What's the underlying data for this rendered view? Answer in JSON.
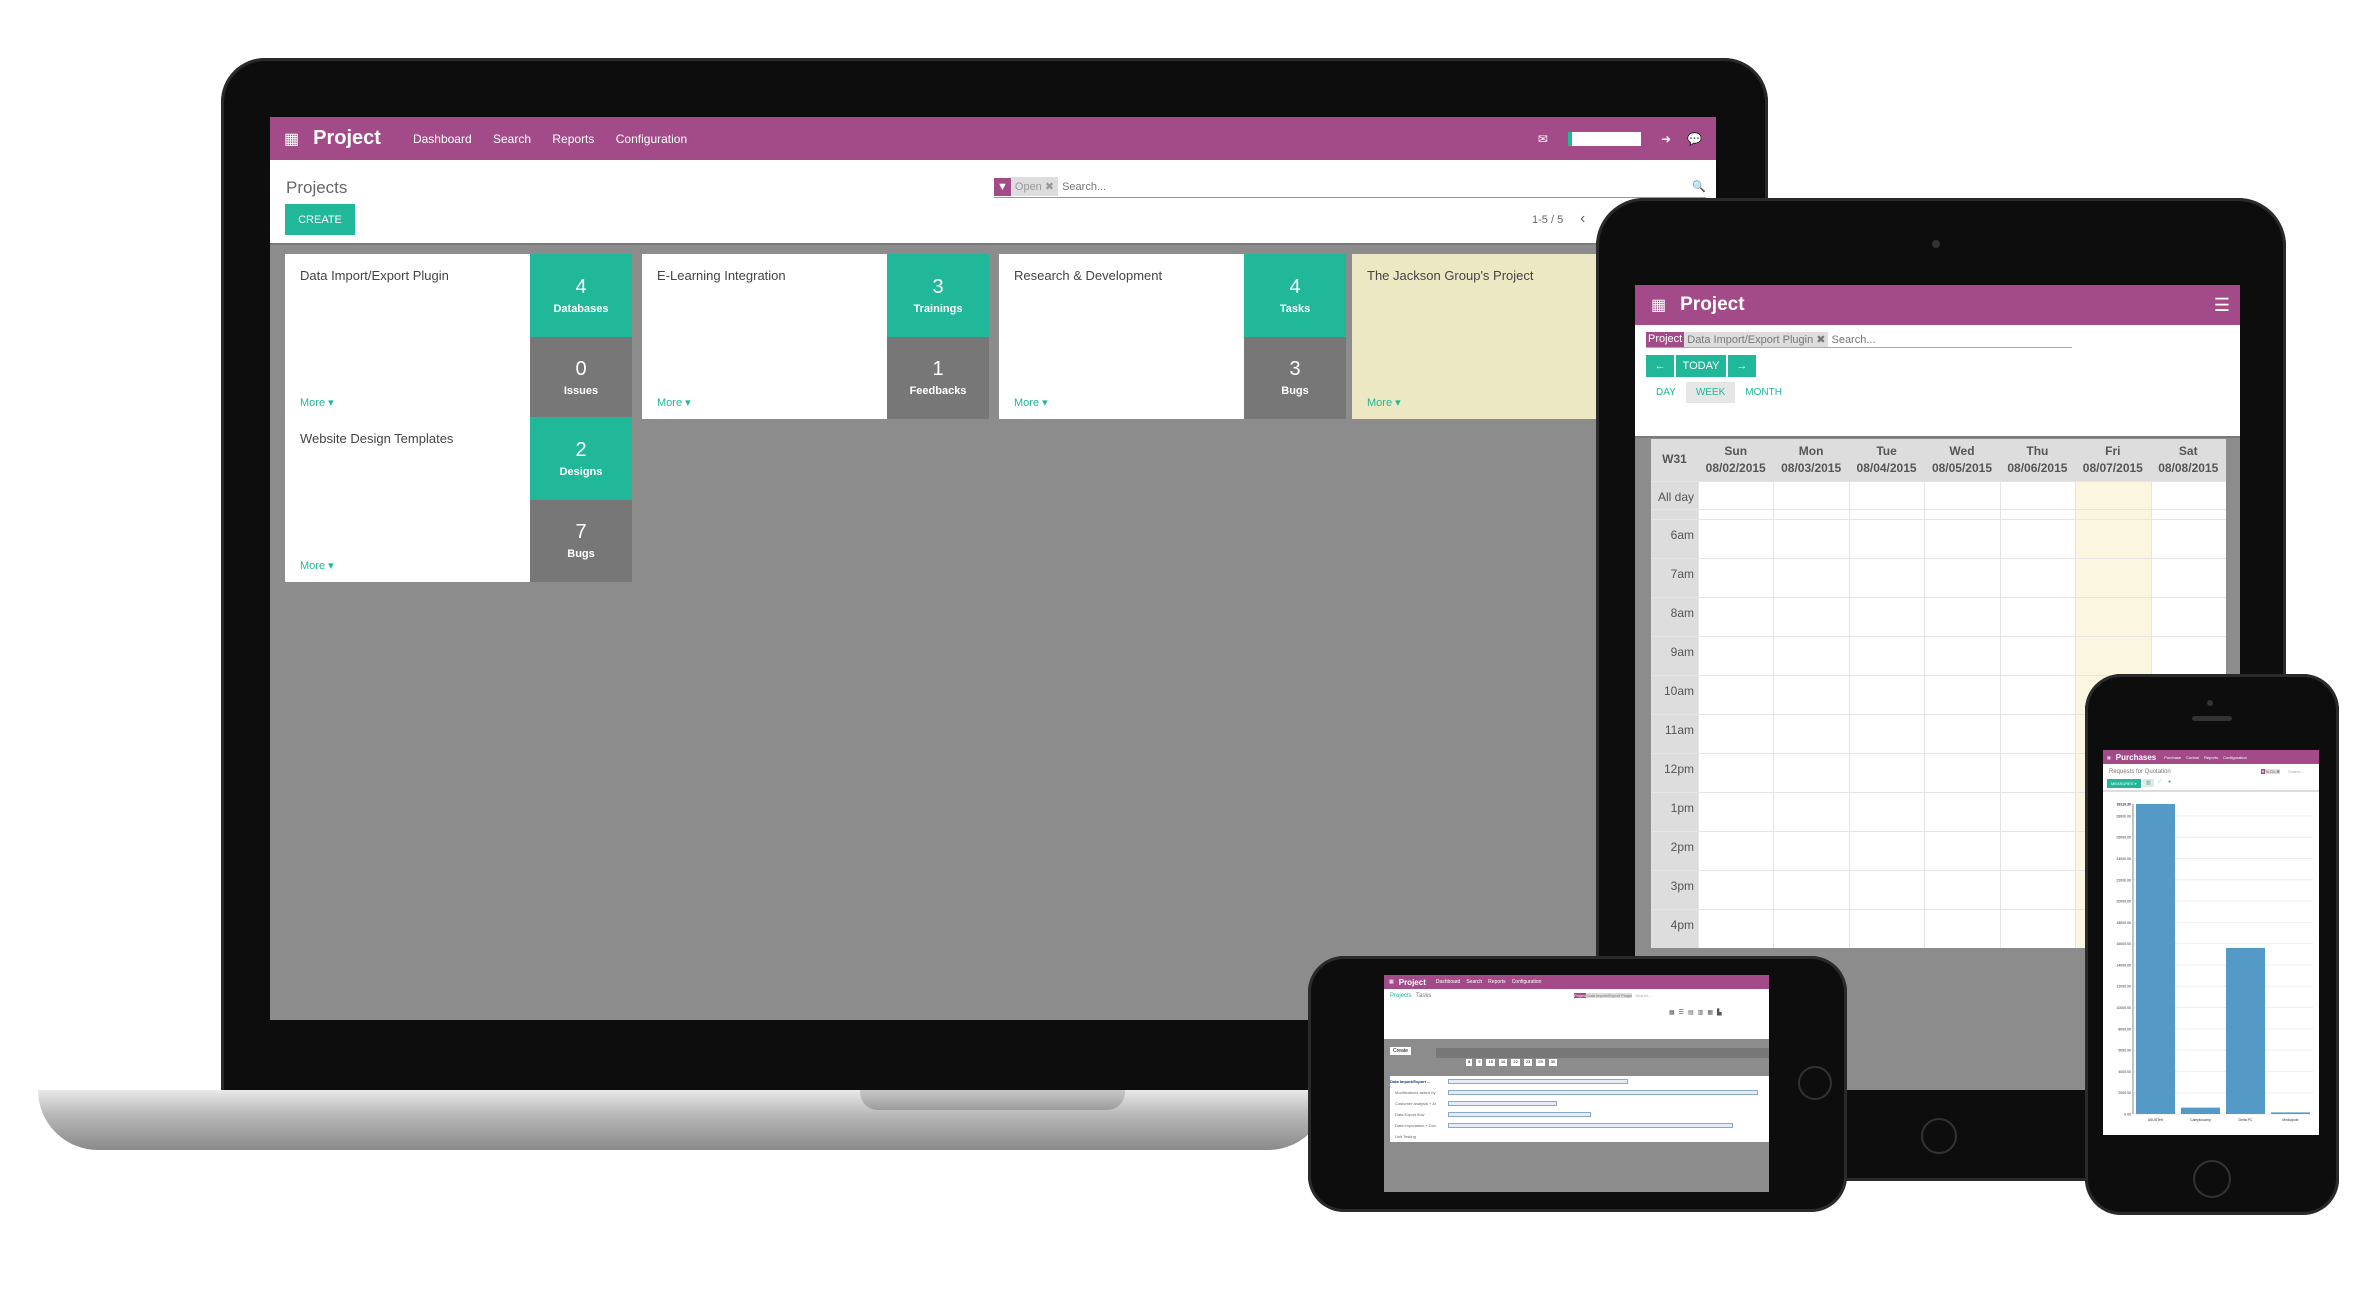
{
  "laptop": {
    "app_title": "Project",
    "menu": [
      "Dashboard",
      "Search",
      "Reports",
      "Configuration"
    ],
    "breadcrumb": "Projects",
    "search": {
      "facet": "Open",
      "placeholder": "Search..."
    },
    "create_label": "CREATE",
    "pager": "1-5 / 5",
    "more_label": "More ▾",
    "cards": [
      {
        "name": "Data Import/Export Plugin",
        "top": {
          "count": "4",
          "label": "Databases"
        },
        "bottom": {
          "count": "0",
          "label": "Issues"
        }
      },
      {
        "name": "E-Learning Integration",
        "top": {
          "count": "3",
          "label": "Trainings"
        },
        "bottom": {
          "count": "1",
          "label": "Feedbacks"
        }
      },
      {
        "name": "Research & Development",
        "top": {
          "count": "4",
          "label": "Tasks"
        },
        "bottom": {
          "count": "3",
          "label": "Bugs"
        }
      },
      {
        "name": "The Jackson Group's Project"
      },
      {
        "name": "Website Design Templates",
        "top": {
          "count": "2",
          "label": "Designs"
        },
        "bottom": {
          "count": "7",
          "label": "Bugs"
        }
      }
    ]
  },
  "tablet": {
    "app_title": "Project",
    "search": {
      "facet_label": "Project",
      "facet_value": "Data Import/Export Plugin",
      "placeholder": "Search..."
    },
    "today_label": "TODAY",
    "views": [
      "DAY",
      "WEEK",
      "MONTH"
    ],
    "active_view": "WEEK",
    "week": "W31",
    "days": [
      {
        "d": "Sun",
        "date": "08/02/2015"
      },
      {
        "d": "Mon",
        "date": "08/03/2015"
      },
      {
        "d": "Tue",
        "date": "08/04/2015"
      },
      {
        "d": "Wed",
        "date": "08/05/2015"
      },
      {
        "d": "Thu",
        "date": "08/06/2015"
      },
      {
        "d": "Fri",
        "date": "08/07/2015"
      },
      {
        "d": "Sat",
        "date": "08/08/2015"
      }
    ],
    "all_day": "All day",
    "hours": [
      "6am",
      "7am",
      "8am",
      "9am",
      "10am",
      "11am",
      "12pm",
      "1pm",
      "2pm",
      "3pm",
      "4pm"
    ]
  },
  "mini": {
    "app_title": "Project",
    "menu": [
      "Dashboard",
      "Search",
      "Reports",
      "Configuration"
    ],
    "breadcrumb": [
      "Projects",
      "Tasks"
    ],
    "search": {
      "facet_label": "Project",
      "facet_value": "Data Import/Export Plugin",
      "placeholder": "Search..."
    },
    "create_label": "Create",
    "days": [
      "8",
      "9",
      "15",
      "16",
      "22",
      "23",
      "29",
      "30"
    ],
    "tasks": [
      {
        "name": "Data Import/Export ...",
        "bar": 0.58
      },
      {
        "name": "Modifications asked by ...",
        "bar": 1.0
      },
      {
        "name": "Customer analysis + Arc...",
        "bar": 0.35
      },
      {
        "name": "Data Export flow",
        "bar": 0.46
      },
      {
        "name": "Data importation + Doc",
        "bar": 0.92
      },
      {
        "name": "Unit Testing",
        "bar": 0
      }
    ]
  },
  "phone": {
    "app_title": "Purchases",
    "menu": [
      "Purchase",
      "Control",
      "Reports",
      "Configuration"
    ],
    "breadcrumb": "Requests for Quotation",
    "search": {
      "facet": "To Do",
      "placeholder": "Search..."
    },
    "measures_label": "MEASURES ▾",
    "colors": {
      "bar": "#5599c7",
      "accent": "#21b799",
      "brand": "#a24b88"
    }
  },
  "chart_data": {
    "type": "bar",
    "categories": [
      "ASUSTeK",
      "Camptocamp",
      "Delta PC",
      "Mediapole"
    ],
    "values": [
      29119.3,
      600,
      15600,
      150
    ],
    "max_label": "29119.30",
    "yticks": [
      "0.00",
      "2000.00",
      "4000.00",
      "6000.00",
      "8000.00",
      "10000.00",
      "12000.00",
      "14000.00",
      "16000.00",
      "18000.00",
      "20000.00",
      "22000.00",
      "24000.00",
      "26000.00",
      "28000.00"
    ],
    "ylim": [
      0,
      29119.3
    ]
  }
}
